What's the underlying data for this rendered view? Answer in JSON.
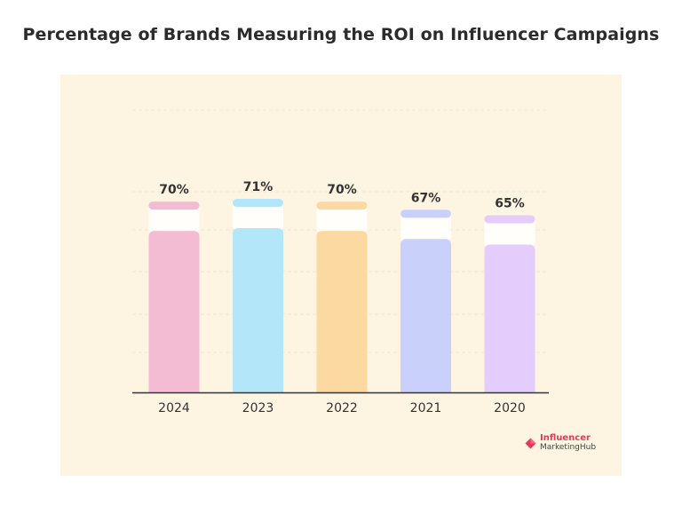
{
  "chart_data": {
    "type": "bar",
    "title": "Percentage of Brands Measuring the ROI on Influencer Campaigns",
    "categories": [
      "2024",
      "2023",
      "2022",
      "2021",
      "2020"
    ],
    "values": [
      70,
      71,
      70,
      67,
      65
    ],
    "data_labels": [
      "70%",
      "71%",
      "70%",
      "67%",
      "65%"
    ],
    "ylim": [
      0,
      100
    ],
    "bar_colors": [
      "#f4bcd2",
      "#b2e6f8",
      "#fcd9a0",
      "#c9d1fa",
      "#e4cdfc"
    ],
    "grid": true,
    "legend": "none"
  },
  "colors": {
    "panel_background": "#fdf4e1",
    "baseline": "#333333",
    "gridline": "#eee6d4",
    "brand_accent": "#e7385a"
  },
  "logo": {
    "line1": "Influencer",
    "line2": "MarketingHub",
    "icon": "influencer-marketing-hub-logo-icon"
  }
}
